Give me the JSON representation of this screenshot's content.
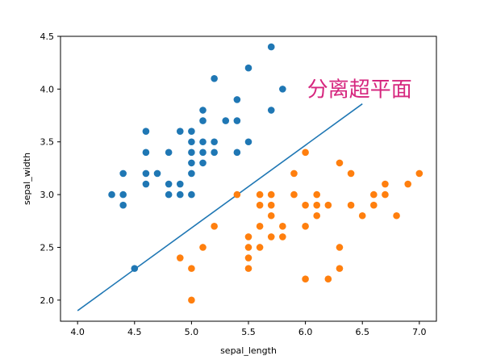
{
  "chart_data": {
    "type": "scatter",
    "xlabel": "sepal_length",
    "ylabel": "sepal_width",
    "xlim": [
      3.85,
      7.15
    ],
    "ylim": [
      1.8,
      4.5
    ],
    "x_ticks": [
      4.0,
      4.5,
      5.0,
      5.5,
      6.0,
      6.5,
      7.0
    ],
    "y_ticks": [
      2.0,
      2.5,
      3.0,
      3.5,
      4.0,
      4.5
    ],
    "x_tick_labels": [
      "4.0",
      "4.5",
      "5.0",
      "5.5",
      "6.0",
      "6.5",
      "7.0"
    ],
    "y_tick_labels": [
      "2.0",
      "2.5",
      "3.0",
      "3.5",
      "4.0",
      "4.5"
    ],
    "grid": false,
    "annotation": {
      "text": "分离超平面",
      "x": 6.1,
      "y": 4.0,
      "color": "#d6277f"
    },
    "line": {
      "x": [
        4.0,
        6.5
      ],
      "y": [
        1.9,
        3.86
      ],
      "color": "#1f77b4"
    },
    "series": [
      {
        "color": "#1f77b4",
        "points": [
          [
            4.3,
            3.0
          ],
          [
            4.4,
            3.2
          ],
          [
            4.4,
            3.0
          ],
          [
            4.4,
            2.9
          ],
          [
            4.5,
            2.3
          ],
          [
            4.6,
            3.6
          ],
          [
            4.6,
            3.4
          ],
          [
            4.6,
            3.2
          ],
          [
            4.6,
            3.1
          ],
          [
            4.7,
            3.2
          ],
          [
            4.8,
            3.4
          ],
          [
            4.8,
            3.1
          ],
          [
            4.8,
            3.0
          ],
          [
            4.9,
            3.6
          ],
          [
            4.9,
            3.1
          ],
          [
            4.9,
            3.0
          ],
          [
            5.0,
            3.6
          ],
          [
            5.0,
            3.5
          ],
          [
            5.0,
            3.4
          ],
          [
            5.0,
            3.3
          ],
          [
            5.0,
            3.2
          ],
          [
            5.0,
            3.0
          ],
          [
            5.1,
            3.8
          ],
          [
            5.1,
            3.7
          ],
          [
            5.1,
            3.5
          ],
          [
            5.1,
            3.4
          ],
          [
            5.1,
            3.3
          ],
          [
            5.2,
            4.1
          ],
          [
            5.2,
            3.5
          ],
          [
            5.2,
            3.4
          ],
          [
            5.3,
            3.7
          ],
          [
            5.4,
            3.9
          ],
          [
            5.4,
            3.7
          ],
          [
            5.4,
            3.4
          ],
          [
            5.5,
            4.2
          ],
          [
            5.5,
            3.5
          ],
          [
            5.7,
            4.4
          ],
          [
            5.7,
            3.8
          ],
          [
            5.8,
            4.0
          ]
        ]
      },
      {
        "color": "#ff7f0e",
        "points": [
          [
            4.9,
            2.4
          ],
          [
            5.0,
            2.3
          ],
          [
            5.0,
            2.0
          ],
          [
            5.1,
            2.5
          ],
          [
            5.2,
            2.7
          ],
          [
            5.4,
            3.0
          ],
          [
            5.5,
            2.6
          ],
          [
            5.5,
            2.5
          ],
          [
            5.5,
            2.4
          ],
          [
            5.5,
            2.3
          ],
          [
            5.6,
            3.0
          ],
          [
            5.6,
            2.9
          ],
          [
            5.6,
            2.7
          ],
          [
            5.6,
            2.5
          ],
          [
            5.7,
            3.0
          ],
          [
            5.7,
            2.9
          ],
          [
            5.7,
            2.8
          ],
          [
            5.7,
            2.6
          ],
          [
            5.8,
            2.7
          ],
          [
            5.8,
            2.6
          ],
          [
            5.9,
            3.2
          ],
          [
            5.9,
            3.0
          ],
          [
            6.0,
            3.4
          ],
          [
            6.0,
            2.9
          ],
          [
            6.0,
            2.7
          ],
          [
            6.0,
            2.2
          ],
          [
            6.1,
            3.0
          ],
          [
            6.1,
            2.9
          ],
          [
            6.1,
            2.8
          ],
          [
            6.2,
            2.9
          ],
          [
            6.2,
            2.2
          ],
          [
            6.3,
            3.3
          ],
          [
            6.3,
            2.5
          ],
          [
            6.3,
            2.3
          ],
          [
            6.4,
            3.2
          ],
          [
            6.4,
            2.9
          ],
          [
            6.5,
            2.8
          ],
          [
            6.6,
            3.0
          ],
          [
            6.6,
            2.9
          ],
          [
            6.7,
            3.1
          ],
          [
            6.7,
            3.0
          ],
          [
            6.8,
            2.8
          ],
          [
            6.9,
            3.1
          ],
          [
            7.0,
            3.2
          ]
        ]
      }
    ]
  }
}
